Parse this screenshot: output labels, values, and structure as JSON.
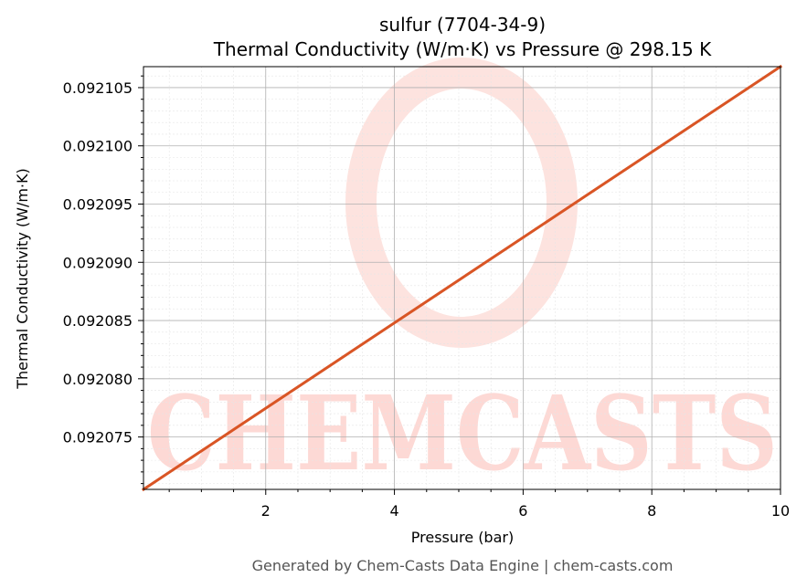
{
  "chart_data": {
    "type": "line",
    "title": "sulfur (7704-34-9)",
    "subtitle": "Thermal Conductivity (W/m·K) vs Pressure @ 298.15 K",
    "xlabel": "Pressure (bar)",
    "ylabel": "Thermal Conductivity (W/m·K)",
    "xlim": [
      0.1,
      10
    ],
    "ylim": [
      0.0920705,
      0.0921068
    ],
    "x_ticks": [
      2,
      4,
      6,
      8,
      10
    ],
    "y_ticks": [
      0.092075,
      0.09208,
      0.092085,
      0.09209,
      0.092095,
      0.0921,
      0.092105
    ],
    "x_tick_labels": [
      "2",
      "4",
      "6",
      "8",
      "10"
    ],
    "y_tick_labels": [
      "0.092075",
      "0.092080",
      "0.092085",
      "0.092090",
      "0.092095",
      "0.092100",
      "0.092105"
    ],
    "grid": true,
    "series": [
      {
        "color": "#d95525",
        "x": [
          0.1,
          10
        ],
        "y": [
          0.0920705,
          0.0921068
        ]
      }
    ]
  },
  "watermark": {
    "text": "CHEMCASTS",
    "color": "#fdd9d5"
  },
  "footer": "Generated by Chem-Casts Data Engine | chem-casts.com"
}
